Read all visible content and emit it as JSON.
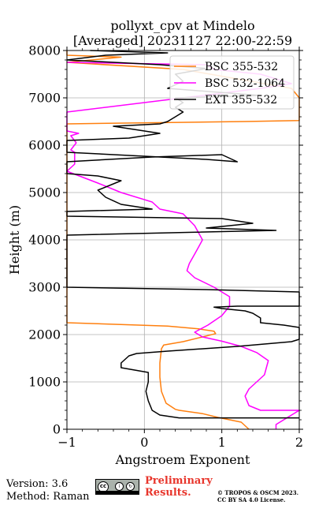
{
  "chart_data": {
    "type": "line",
    "title_line1": "pollyxt_cpv at Mindelo",
    "title_line2": "[Averaged] 20231127 22:00-22:59",
    "xlabel": "Angstroem Exponent",
    "ylabel": "Height (m)",
    "xlim": [
      -1,
      2
    ],
    "ylim": [
      0,
      8000
    ],
    "x_ticks": [
      -1,
      0,
      1,
      2
    ],
    "x_tick_labels": [
      "−1",
      "0",
      "1",
      "2"
    ],
    "y_ticks": [
      0,
      1000,
      2000,
      3000,
      4000,
      5000,
      6000,
      7000,
      8000
    ],
    "y_tick_labels": [
      "0",
      "1000",
      "2000",
      "3000",
      "4000",
      "5000",
      "6000",
      "7000",
      "8000"
    ],
    "grid": true,
    "legend_position": "top-right",
    "series": [
      {
        "name": "BSC 355-532",
        "color": "#ff7f0e",
        "points": [
          [
            1.35,
            0
          ],
          [
            1.25,
            150
          ],
          [
            0.95,
            250
          ],
          [
            0.75,
            330
          ],
          [
            0.45,
            400
          ],
          [
            0.4,
            420
          ],
          [
            0.28,
            550
          ],
          [
            0.22,
            800
          ],
          [
            0.2,
            1100
          ],
          [
            0.2,
            1400
          ],
          [
            0.22,
            1700
          ],
          [
            0.25,
            1780
          ],
          [
            0.5,
            1850
          ],
          [
            0.75,
            1950
          ],
          [
            0.92,
            2020
          ],
          [
            0.9,
            2070
          ],
          [
            0.7,
            2120
          ],
          [
            0.3,
            2180
          ],
          [
            -1,
            2250
          ],
          [
            -1,
            6450
          ],
          [
            0.35,
            6480
          ],
          [
            1.3,
            6500
          ],
          [
            2,
            6520
          ],
          [
            2,
            7000
          ],
          [
            1.9,
            7200
          ],
          [
            1.2,
            7400
          ],
          [
            0.5,
            7600
          ],
          [
            -1,
            7750
          ],
          [
            -0.3,
            7860
          ],
          [
            -1,
            7900
          ],
          [
            -1,
            8000
          ]
        ]
      },
      {
        "name": "BSC 532-1064",
        "color": "#ff00ff",
        "points": [
          [
            1.7,
            2
          ],
          [
            1.7,
            100
          ],
          [
            2,
            400
          ],
          [
            1.5,
            400
          ],
          [
            1.35,
            500
          ],
          [
            1.3,
            700
          ],
          [
            1.35,
            850
          ],
          [
            1.55,
            1150
          ],
          [
            1.6,
            1450
          ],
          [
            1.45,
            1620
          ],
          [
            1.25,
            1750
          ],
          [
            1.0,
            1860
          ],
          [
            0.75,
            1950
          ],
          [
            0.65,
            2050
          ],
          [
            0.82,
            2200
          ],
          [
            1.0,
            2400
          ],
          [
            1.1,
            2600
          ],
          [
            1.1,
            2800
          ],
          [
            0.9,
            3000
          ],
          [
            0.65,
            3200
          ],
          [
            0.55,
            3350
          ],
          [
            0.58,
            3500
          ],
          [
            0.65,
            3700
          ],
          [
            0.7,
            3850
          ],
          [
            0.75,
            4000
          ],
          [
            0.65,
            4300
          ],
          [
            0.5,
            4550
          ],
          [
            0.2,
            4650
          ],
          [
            0.1,
            4800
          ],
          [
            -0.3,
            5000
          ],
          [
            -0.6,
            5200
          ],
          [
            -1,
            5450
          ],
          [
            -0.9,
            5600
          ],
          [
            -0.9,
            5750
          ],
          [
            -0.9,
            5850
          ],
          [
            -0.95,
            5900
          ],
          [
            -0.88,
            6050
          ],
          [
            -0.95,
            6200
          ],
          [
            -0.85,
            6250
          ],
          [
            -1,
            6300
          ],
          [
            -1,
            6700
          ],
          [
            0.5,
            7000
          ],
          [
            1.5,
            7200
          ],
          [
            1.9,
            7300
          ],
          [
            1.5,
            7500
          ],
          [
            0.9,
            7600
          ],
          [
            0.8,
            7700
          ],
          [
            -1,
            7750
          ]
        ]
      },
      {
        "name": "EXT 355-532",
        "color": "#000000",
        "points": [
          [
            2,
            240
          ],
          [
            0.45,
            240
          ],
          [
            0.2,
            300
          ],
          [
            0.1,
            400
          ],
          [
            0.05,
            600
          ],
          [
            0.02,
            800
          ],
          [
            0.05,
            1000
          ],
          [
            0.05,
            1200
          ],
          [
            -0.3,
            1300
          ],
          [
            -0.3,
            1400
          ],
          [
            -0.2,
            1550
          ],
          [
            -0.1,
            1600
          ],
          [
            0.3,
            1650
          ],
          [
            1.2,
            1750
          ],
          [
            1.9,
            1850
          ],
          [
            2,
            1900
          ],
          [
            2,
            2150
          ],
          [
            1.8,
            2200
          ],
          [
            1.5,
            2250
          ],
          [
            1.5,
            2350
          ],
          [
            1.4,
            2450
          ],
          [
            1.3,
            2500
          ],
          [
            1.0,
            2550
          ],
          [
            0.9,
            2580
          ],
          [
            1.2,
            2600
          ],
          [
            2,
            2600
          ],
          [
            2,
            2900
          ],
          [
            0.8,
            2950
          ],
          [
            -1,
            3000
          ],
          [
            -1,
            4100
          ],
          [
            1.7,
            4200
          ],
          [
            0.8,
            4250
          ],
          [
            1.4,
            4350
          ],
          [
            1.0,
            4450
          ],
          [
            -1,
            4500
          ],
          [
            -1,
            4600
          ],
          [
            0.1,
            4650
          ],
          [
            -0.3,
            4750
          ],
          [
            -0.5,
            4900
          ],
          [
            -0.6,
            5050
          ],
          [
            -0.3,
            5250
          ],
          [
            -0.6,
            5350
          ],
          [
            -1,
            5400
          ],
          [
            -1,
            5650
          ],
          [
            0.1,
            5750
          ],
          [
            1.0,
            5800
          ],
          [
            1.2,
            5650
          ],
          [
            0.8,
            5700
          ],
          [
            -1,
            5850
          ],
          [
            -1,
            6100
          ],
          [
            -0.2,
            6150
          ],
          [
            0.2,
            6250
          ],
          [
            -0.4,
            6400
          ],
          [
            0.2,
            6450
          ],
          [
            0.3,
            6500
          ],
          [
            0.4,
            6600
          ],
          [
            0.5,
            6700
          ],
          [
            0.4,
            6800
          ],
          [
            0.5,
            6900
          ],
          [
            0.4,
            7000
          ],
          [
            1.5,
            7050
          ],
          [
            0.3,
            7200
          ],
          [
            0.5,
            7350
          ],
          [
            0.4,
            7500
          ],
          [
            0.8,
            7620
          ],
          [
            0.2,
            7700
          ],
          [
            -1,
            7800
          ],
          [
            -0.5,
            7900
          ],
          [
            0.3,
            7950
          ],
          [
            -0.7,
            8000
          ]
        ]
      }
    ]
  },
  "footer": {
    "version": "Version: 3.6",
    "method": "Method: Raman",
    "cc_main": "cc",
    "cc_by": "i",
    "cc_sa": "↻",
    "preliminary_line1": "Preliminary",
    "preliminary_line2": "Results.",
    "copyright_line1": "© TROPOS & OSCM 2023.",
    "copyright_line2": "CC BY SA 4.0 License."
  }
}
